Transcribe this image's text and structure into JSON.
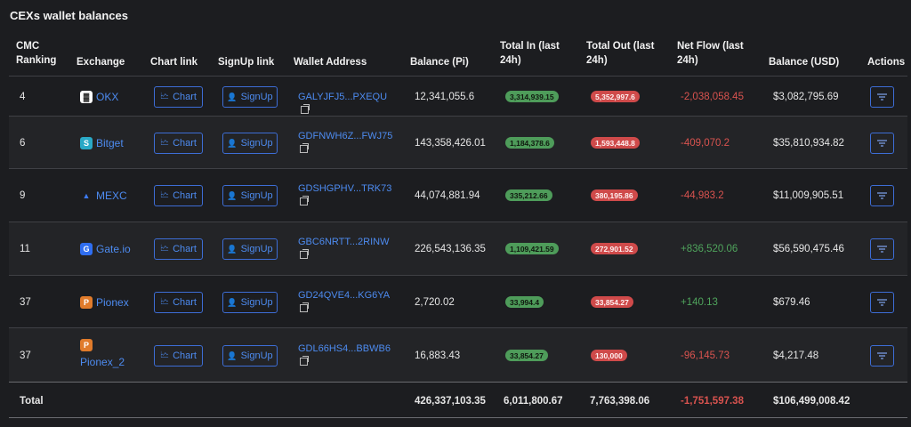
{
  "title": "CEXs wallet balances",
  "headers": {
    "rank": "CMC Ranking",
    "exchange": "Exchange",
    "chart": "Chart link",
    "signup": "SignUp link",
    "wallet": "Wallet Address",
    "balance_pi": "Balance (Pi)",
    "total_in": "Total In (last 24h)",
    "total_out": "Total Out (last 24h)",
    "net_flow": "Net Flow (last 24h)",
    "balance_usd": "Balance (USD)",
    "actions": "Actions"
  },
  "buttons": {
    "chart": "Chart",
    "signup": "SignUp"
  },
  "rows": [
    {
      "rank": "4",
      "exchange": "OKX",
      "logo": "okx-logo",
      "wallet": "GALYJFJ5...PXEQU",
      "balance_pi": "12,341,055.6",
      "total_in": "3,314,939.15",
      "total_out": "5,352,997.6",
      "net_flow": "-2,038,058.45",
      "balance_usd": "$3,082,795.69"
    },
    {
      "rank": "6",
      "exchange": "Bitget",
      "logo": "bitget-logo",
      "wallet": "GDFNWH6Z...FWJ75",
      "balance_pi": "143,358,426.01",
      "total_in": "1,184,378.6",
      "total_out": "1,593,448.8",
      "net_flow": "-409,070.2",
      "balance_usd": "$35,810,934.82"
    },
    {
      "rank": "9",
      "exchange": "MEXC",
      "logo": "mexc-logo",
      "wallet": "GDSHGPHV...TRK73",
      "balance_pi": "44,074,881.94",
      "total_in": "335,212.66",
      "total_out": "380,195.86",
      "net_flow": "-44,983.2",
      "balance_usd": "$11,009,905.51"
    },
    {
      "rank": "11",
      "exchange": "Gate.io",
      "logo": "gateio-logo",
      "wallet": "GBC6NRTT...2RINW",
      "balance_pi": "226,543,136.35",
      "total_in": "1,109,421.59",
      "total_out": "272,901.52",
      "net_flow": "+836,520.06",
      "balance_usd": "$56,590,475.46"
    },
    {
      "rank": "37",
      "exchange": "Pionex",
      "logo": "pionex-logo",
      "wallet": "GD24QVE4...KG6YA",
      "balance_pi": "2,720.02",
      "total_in": "33,994.4",
      "total_out": "33,854.27",
      "net_flow": "+140.13",
      "balance_usd": "$679.46"
    },
    {
      "rank": "37",
      "exchange": "Pionex_2",
      "logo": "pionex-logo",
      "wallet": "GDL66HS4...BBWB6",
      "balance_pi": "16,883.43",
      "total_in": "33,854.27",
      "total_out": "130,000",
      "net_flow": "-96,145.73",
      "balance_usd": "$4,217.48"
    }
  ],
  "totals": {
    "label": "Total",
    "balance_pi": "426,337,103.35",
    "total_in": "6,011,800.67",
    "total_out": "7,763,398.06",
    "net_flow": "-1,751,597.38",
    "balance_usd": "$106,499,008.42"
  },
  "colors": {
    "accent": "#4d8bf0",
    "positive": "#4fa45c",
    "negative": "#d9534f",
    "background": "#1c1d20"
  }
}
